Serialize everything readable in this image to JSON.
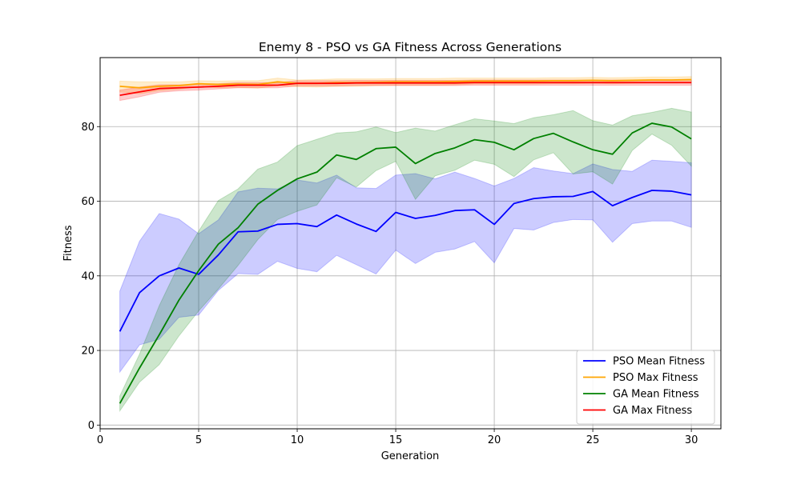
{
  "chart_data": {
    "type": "line",
    "title": "Enemy 8 - PSO vs GA Fitness Across Generations",
    "xlabel": "Generation",
    "ylabel": "Fitness",
    "xlim": [
      0,
      31.5
    ],
    "ylim": [
      -1,
      98.5
    ],
    "xticks": [
      0,
      5,
      10,
      15,
      20,
      25,
      30
    ],
    "yticks": [
      0,
      20,
      40,
      60,
      80
    ],
    "grid": true,
    "legend_position": "lower-right",
    "x": [
      1,
      2,
      3,
      4,
      5,
      6,
      7,
      8,
      9,
      10,
      11,
      12,
      13,
      14,
      15,
      16,
      17,
      18,
      19,
      20,
      21,
      22,
      23,
      24,
      25,
      26,
      27,
      28,
      29,
      30
    ],
    "series": [
      {
        "name": "PSO Mean Fitness",
        "color": "#0000ff",
        "values": [
          25.1,
          35.5,
          40.0,
          42.1,
          40.4,
          45.6,
          51.8,
          52.0,
          53.8,
          54.0,
          53.2,
          56.3,
          53.9,
          51.9,
          57.0,
          55.4,
          56.2,
          57.5,
          57.7,
          53.8,
          59.4,
          60.7,
          61.2,
          61.3,
          62.6,
          58.8,
          61.0,
          62.9,
          62.7,
          61.7
        ],
        "band_upper": [
          35.9,
          49.3,
          56.7,
          55.2,
          51.3,
          55.0,
          62.5,
          63.5,
          63.3,
          65.7,
          64.9,
          67.0,
          63.6,
          63.4,
          67.0,
          67.4,
          66.0,
          67.8,
          66.1,
          64.1,
          66.1,
          69.0,
          68.1,
          67.4,
          70.0,
          68.5,
          68.0,
          71.0,
          70.7,
          70.3
        ],
        "band_lower": [
          14.2,
          21.5,
          23.0,
          28.9,
          29.5,
          36.1,
          40.6,
          40.4,
          43.9,
          42.0,
          41.1,
          45.5,
          43.0,
          40.5,
          46.9,
          43.3,
          46.3,
          47.2,
          49.2,
          43.5,
          52.7,
          52.3,
          54.3,
          55.1,
          55.0,
          49.0,
          54.0,
          54.7,
          54.7,
          53.0
        ],
        "band_color": "#0000ff",
        "band_opacity": 0.2
      },
      {
        "name": "PSO Max Fitness",
        "color": "#ffa500",
        "values": [
          90.8,
          90.4,
          90.8,
          91.0,
          91.5,
          91.3,
          91.4,
          91.3,
          92.0,
          91.6,
          91.6,
          91.8,
          91.8,
          91.9,
          92.0,
          92.0,
          92.0,
          92.1,
          92.2,
          92.2,
          92.2,
          92.2,
          92.3,
          92.3,
          92.4,
          92.3,
          92.4,
          92.5,
          92.5,
          92.6
        ],
        "band_upper": [
          92.2,
          92.0,
          92.0,
          92.0,
          92.3,
          92.2,
          92.3,
          92.3,
          93.0,
          92.5,
          92.6,
          92.8,
          92.8,
          92.8,
          92.9,
          92.9,
          92.9,
          93.0,
          93.0,
          93.0,
          93.0,
          93.0,
          93.1,
          93.1,
          93.2,
          93.1,
          93.2,
          93.3,
          93.3,
          93.4
        ],
        "band_lower": [
          89.3,
          88.8,
          89.6,
          90.0,
          90.7,
          90.4,
          90.5,
          90.3,
          91.0,
          90.7,
          90.6,
          90.8,
          90.8,
          91.0,
          91.1,
          91.1,
          91.1,
          91.2,
          91.4,
          91.4,
          91.4,
          91.4,
          91.5,
          91.5,
          91.6,
          91.5,
          91.6,
          91.7,
          91.7,
          91.8
        ],
        "band_color": "#ffa500",
        "band_opacity": 0.2
      },
      {
        "name": "GA Mean Fitness",
        "color": "#008000",
        "values": [
          5.8,
          15.3,
          24.2,
          33.5,
          41.4,
          48.5,
          52.9,
          59.2,
          62.9,
          66.0,
          67.8,
          72.4,
          71.2,
          74.1,
          74.5,
          70.1,
          72.8,
          74.3,
          76.5,
          75.8,
          73.8,
          76.8,
          78.2,
          75.9,
          73.8,
          72.6,
          78.3,
          80.9,
          79.9,
          76.7
        ],
        "band_upper": [
          7.8,
          19.0,
          32.0,
          43.0,
          52.0,
          60.2,
          63.3,
          68.6,
          70.5,
          74.9,
          76.6,
          78.3,
          78.6,
          79.9,
          78.4,
          79.6,
          78.8,
          80.5,
          82.1,
          81.5,
          80.8,
          82.4,
          83.2,
          84.3,
          81.6,
          80.4,
          82.9,
          83.8,
          84.9,
          83.9
        ],
        "band_lower": [
          3.8,
          11.5,
          16.2,
          23.9,
          30.6,
          36.5,
          42.8,
          49.7,
          55.1,
          57.3,
          59.0,
          66.3,
          63.8,
          68.2,
          70.7,
          60.5,
          66.8,
          68.3,
          71.0,
          69.9,
          66.6,
          71.1,
          73.0,
          67.3,
          67.9,
          64.6,
          73.6,
          78.0,
          75.0,
          69.4
        ],
        "band_color": "#008000",
        "band_opacity": 0.2
      },
      {
        "name": "GA Max Fitness",
        "color": "#ff0000",
        "values": [
          88.4,
          89.3,
          90.2,
          90.4,
          90.6,
          90.8,
          91.1,
          91.1,
          91.1,
          91.6,
          91.6,
          91.6,
          91.7,
          91.7,
          91.7,
          91.7,
          91.7,
          91.7,
          91.8,
          91.8,
          91.8,
          91.8,
          91.8,
          91.8,
          91.8,
          91.8,
          91.8,
          91.8,
          91.8,
          91.8
        ],
        "band_upper": [
          89.8,
          90.6,
          91.2,
          91.2,
          91.4,
          91.5,
          91.8,
          91.8,
          91.8,
          92.3,
          92.3,
          92.3,
          92.4,
          92.4,
          92.4,
          92.4,
          92.4,
          92.4,
          92.5,
          92.5,
          92.5,
          92.5,
          92.5,
          92.5,
          92.5,
          92.5,
          92.5,
          92.5,
          92.5,
          92.5
        ],
        "band_lower": [
          87.0,
          88.0,
          89.2,
          89.6,
          89.8,
          90.1,
          90.4,
          90.4,
          90.4,
          90.9,
          90.9,
          90.9,
          91.0,
          91.0,
          91.0,
          91.0,
          91.0,
          91.0,
          91.1,
          91.1,
          91.1,
          91.1,
          91.1,
          91.1,
          91.1,
          91.1,
          91.1,
          91.1,
          91.1,
          91.1
        ],
        "band_color": "#ff0000",
        "band_opacity": 0.2
      }
    ]
  }
}
